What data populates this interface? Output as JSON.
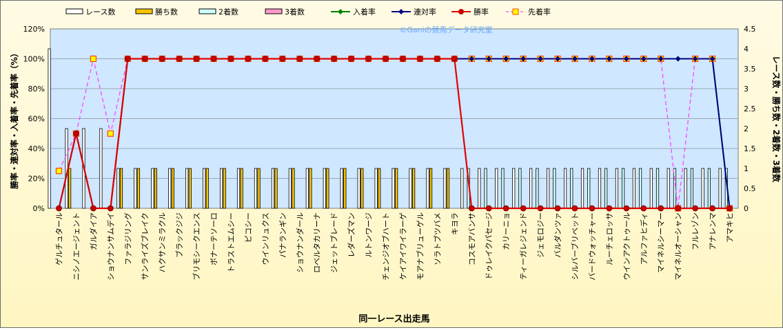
{
  "chart_data": {
    "type": "bar",
    "watermark": "©Ganiの競馬データ研究室",
    "xlabel": "同一レース出走馬",
    "ylabel_left": "勝率・連対率・入着率・先着率（%）",
    "ylabel_right": "レース数・勝ち数・2着数・3着数",
    "left_axis": {
      "min": 0,
      "max": 120,
      "step": 20,
      "unit": "%"
    },
    "right_axis": {
      "min": 0,
      "max": 4.5,
      "step": 0.5
    },
    "left_ticks": [
      "0%",
      "20%",
      "40%",
      "60%",
      "80%",
      "100%",
      "120%"
    ],
    "right_ticks": [
      "0",
      "0.5",
      "1",
      "1.5",
      "2",
      "2.5",
      "3",
      "3.5",
      "4",
      "4.5"
    ],
    "legend": [
      {
        "name": "レース数",
        "kind": "bar",
        "color": "#ffffff"
      },
      {
        "name": "勝ち数",
        "kind": "bar",
        "color": "#f5c400"
      },
      {
        "name": "2着数",
        "kind": "bar",
        "color": "#ccffff"
      },
      {
        "name": "3着数",
        "kind": "bar",
        "color": "#ff99cc"
      },
      {
        "name": "入着率",
        "kind": "line",
        "color": "#008000"
      },
      {
        "name": "連対率",
        "kind": "line",
        "color": "#000080"
      },
      {
        "name": "勝率",
        "kind": "line",
        "color": "#e00000"
      },
      {
        "name": "先着率",
        "kind": "line",
        "color": "#ff44ff"
      }
    ],
    "categories": [
      "ゲルチュタール",
      "ニシノエージェント",
      "ガルダイア",
      "ショウナンサムデイ",
      "ファラジリング",
      "サンライズブレイク",
      "ハクサンミラクル",
      "ブラックジジ",
      "ブリモシークエンス",
      "ボナーテソーロ",
      "トラストエムシー",
      "ピコシー",
      "ウインリュクス",
      "パナランギン",
      "ショウナンダール",
      "ロベルタカリーナ",
      "ジェットブレード",
      "レダーズマン",
      "ルトンワージ",
      "チェンジオブハート",
      "ケイアイワイラーゲ",
      "モアナブリューゲル",
      "ソラトブツバメ",
      "キヨラ",
      "コスモアバンサ",
      "ドゥレイクパセージ",
      "カリーニョ",
      "ティーガレジェンド",
      "ジェモロジー",
      "バルダンツァ",
      "シルバーブリベット",
      "バードウォッチャー",
      "ルーチェロッサ",
      "ウインアクトゥール",
      "アルファヒディ",
      "マイネルシーマー",
      "マイネルオーシャン",
      "フルレゾン",
      "アナレンマ",
      "アマキヒ"
    ],
    "series": [
      {
        "name": "レース数",
        "axis": "right",
        "values": [
          4,
          2,
          2,
          2,
          1,
          1,
          1,
          1,
          1,
          1,
          1,
          1,
          1,
          1,
          1,
          1,
          1,
          1,
          1,
          1,
          1,
          1,
          1,
          1,
          1,
          1,
          1,
          1,
          1,
          1,
          1,
          1,
          1,
          1,
          1,
          1,
          1,
          1,
          1,
          1
        ]
      },
      {
        "name": "勝ち数",
        "axis": "right",
        "values": [
          0,
          1,
          0,
          0,
          1,
          1,
          1,
          1,
          1,
          1,
          1,
          1,
          1,
          1,
          1,
          1,
          1,
          1,
          1,
          1,
          1,
          1,
          1,
          1,
          0,
          0,
          0,
          0,
          0,
          0,
          0,
          0,
          0,
          0,
          0,
          0,
          0,
          0,
          0,
          0
        ]
      },
      {
        "name": "2着数",
        "axis": "right",
        "values": [
          0,
          0,
          0,
          0,
          0,
          0,
          0,
          0,
          0,
          0,
          0,
          0,
          0,
          0,
          0,
          0,
          0,
          0,
          0,
          0,
          0,
          0,
          0,
          0,
          1,
          1,
          1,
          1,
          1,
          1,
          1,
          1,
          1,
          1,
          1,
          1,
          1,
          1,
          1,
          1
        ]
      },
      {
        "name": "3着数",
        "axis": "right",
        "values": [
          0,
          0,
          0,
          0,
          0,
          0,
          0,
          0,
          0,
          0,
          0,
          0,
          0,
          0,
          0,
          0,
          0,
          0,
          0,
          0,
          0,
          0,
          0,
          0,
          0,
          0,
          0,
          0,
          0,
          0,
          0,
          0,
          0,
          0,
          0,
          0,
          0,
          0,
          0,
          0
        ]
      },
      {
        "name": "入着率",
        "axis": "left",
        "values": [
          0,
          50,
          0,
          0,
          100,
          100,
          100,
          100,
          100,
          100,
          100,
          100,
          100,
          100,
          100,
          100,
          100,
          100,
          100,
          100,
          100,
          100,
          100,
          100,
          100,
          100,
          100,
          100,
          100,
          100,
          100,
          100,
          100,
          100,
          100,
          100,
          100,
          100,
          100,
          0
        ]
      },
      {
        "name": "連対率",
        "axis": "left",
        "values": [
          0,
          50,
          0,
          0,
          100,
          100,
          100,
          100,
          100,
          100,
          100,
          100,
          100,
          100,
          100,
          100,
          100,
          100,
          100,
          100,
          100,
          100,
          100,
          100,
          100,
          100,
          100,
          100,
          100,
          100,
          100,
          100,
          100,
          100,
          100,
          100,
          100,
          100,
          100,
          0
        ]
      },
      {
        "name": "勝率",
        "axis": "left",
        "values": [
          0,
          50,
          0,
          0,
          100,
          100,
          100,
          100,
          100,
          100,
          100,
          100,
          100,
          100,
          100,
          100,
          100,
          100,
          100,
          100,
          100,
          100,
          100,
          100,
          0,
          0,
          0,
          0,
          0,
          0,
          0,
          0,
          0,
          0,
          0,
          0,
          0,
          0,
          0,
          0
        ]
      },
      {
        "name": "先着率",
        "axis": "left",
        "values": [
          25,
          50,
          100,
          50,
          100,
          100,
          100,
          100,
          100,
          100,
          100,
          100,
          100,
          100,
          100,
          100,
          100,
          100,
          100,
          100,
          100,
          100,
          100,
          100,
          100,
          100,
          100,
          100,
          100,
          100,
          100,
          100,
          100,
          100,
          100,
          100,
          0,
          100,
          100,
          0
        ]
      }
    ]
  }
}
